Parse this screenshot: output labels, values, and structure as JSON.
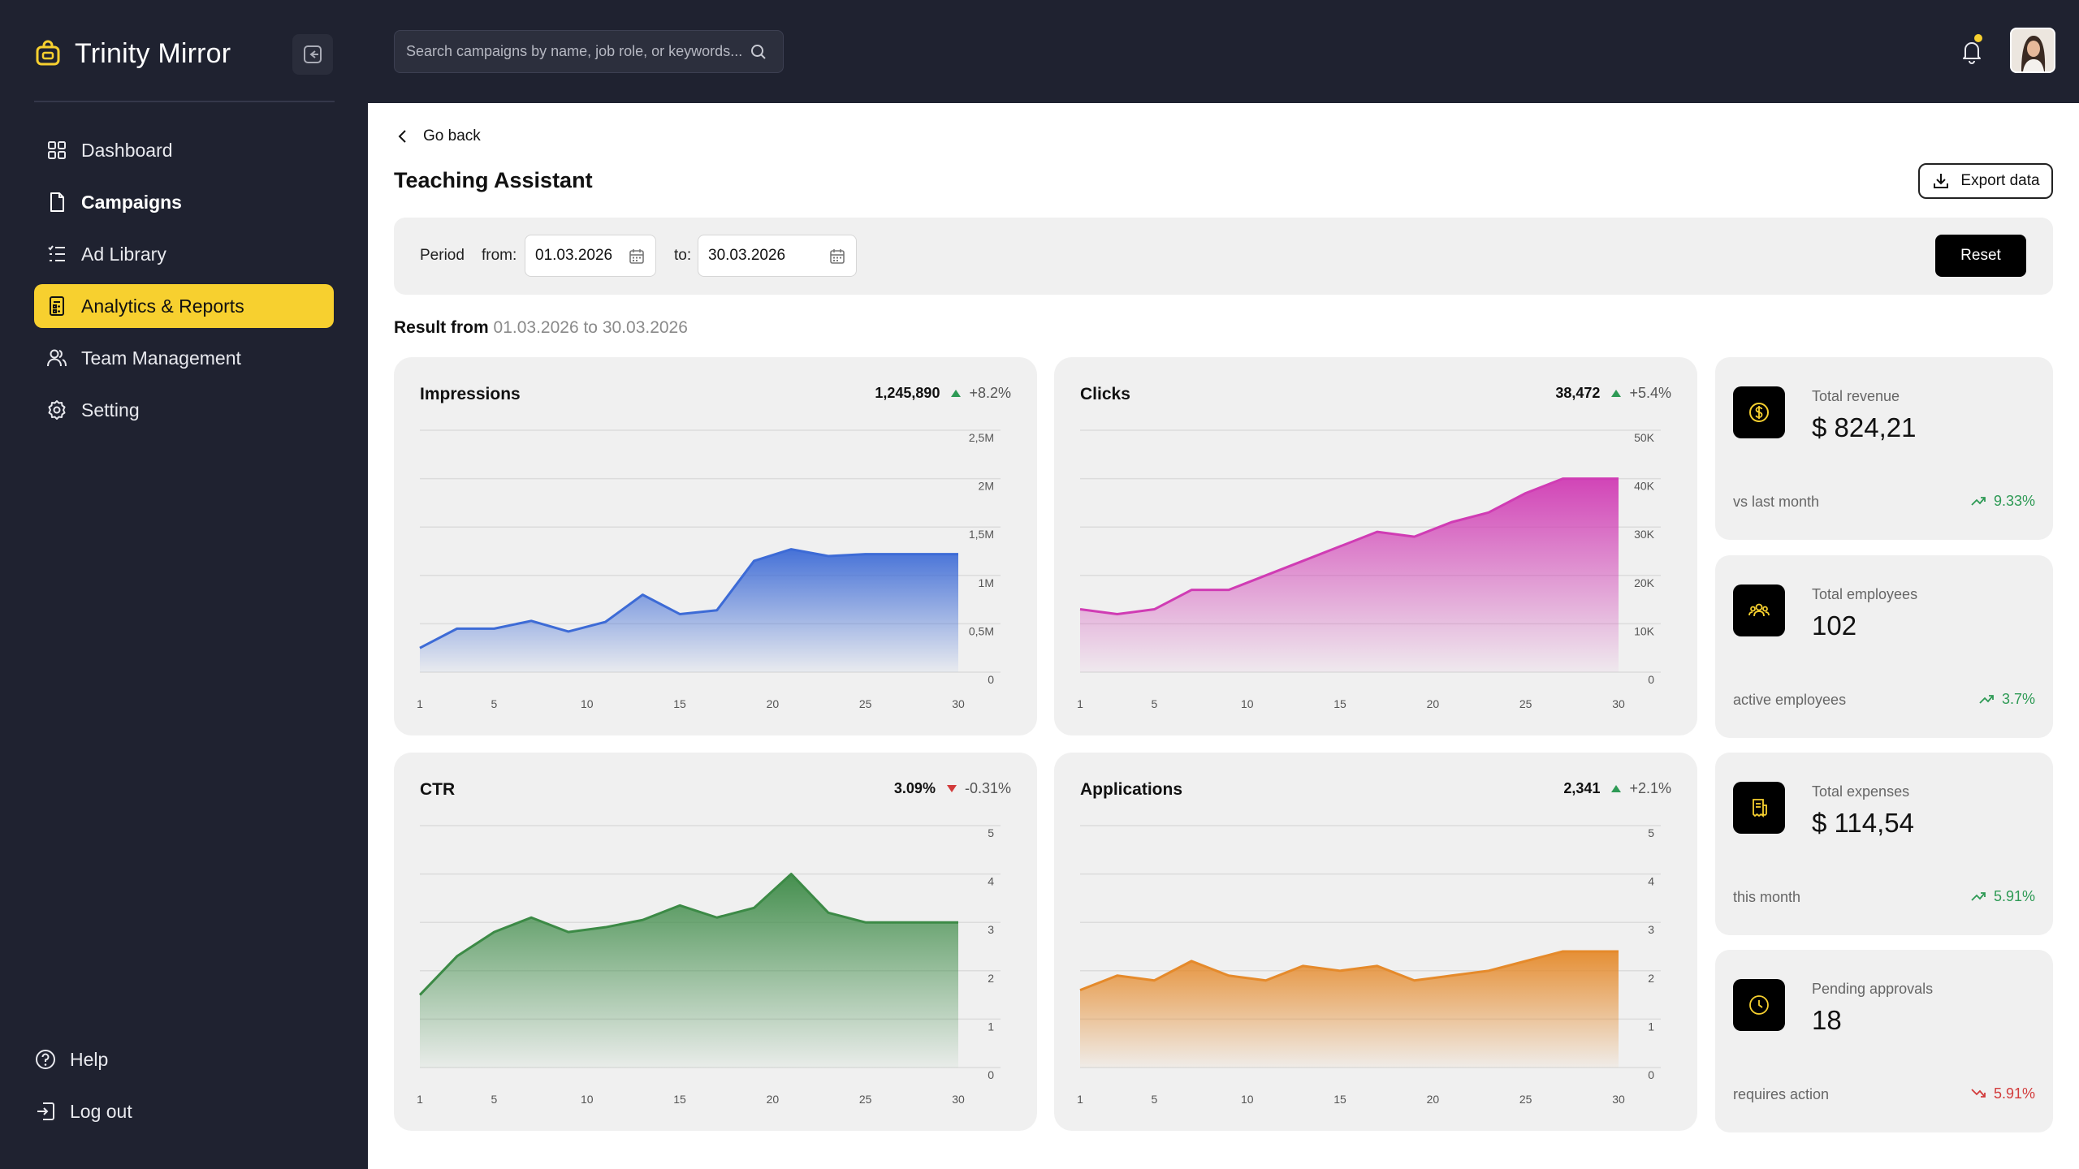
{
  "brand": {
    "name": "Trinity Mirror"
  },
  "sidebar": {
    "items": [
      {
        "label": "Dashboard",
        "icon": "grid-icon"
      },
      {
        "label": "Campaigns",
        "icon": "document-icon"
      },
      {
        "label": "Ad Library",
        "icon": "list-icon"
      },
      {
        "label": "Analytics & Reports",
        "icon": "report-icon",
        "active": true
      },
      {
        "label": "Team Management",
        "icon": "users-icon"
      },
      {
        "label": "Setting",
        "icon": "gear-icon"
      }
    ],
    "bottom": [
      {
        "label": "Help",
        "icon": "help-icon"
      },
      {
        "label": "Log out",
        "icon": "logout-icon"
      }
    ]
  },
  "search": {
    "placeholder": "Search campaigns by name, job role, or keywords..."
  },
  "page": {
    "back_label": "Go back",
    "title": "Teaching Assistant",
    "export_label": "Export data"
  },
  "filter": {
    "period_label": "Period",
    "from_label": "from:",
    "from_value": "01.03.2026",
    "to_label": "to:",
    "to_value": "30.03.2026",
    "reset_label": "Reset"
  },
  "result": {
    "prefix": "Result from",
    "range": "01.03.2026 to 30.03.2026"
  },
  "colors": {
    "accent": "#f7d02f",
    "impressions": "#3d6bd6",
    "clicks": "#d03cb4",
    "ctr": "#3c8a46",
    "applications": "#e58a2b",
    "up": "#2e9a55",
    "down": "#d23b3b"
  },
  "chart_data": [
    {
      "type": "area",
      "title": "Impressions",
      "total": "1,245,890",
      "change": "+8.2%",
      "direction": "up",
      "x": [
        1,
        3,
        5,
        7,
        9,
        11,
        13,
        15,
        17,
        19,
        21,
        23,
        25,
        27,
        29,
        30
      ],
      "values": [
        0.25,
        0.45,
        0.45,
        0.53,
        0.42,
        0.52,
        0.8,
        0.6,
        0.64,
        1.15,
        1.27,
        1.2,
        1.22,
        1.22,
        1.22,
        1.22
      ],
      "series": [
        {
          "name": "Impressions",
          "values": [
            0.25,
            0.45,
            0.45,
            0.53,
            0.42,
            0.52,
            0.8,
            0.6,
            0.64,
            1.15,
            1.27,
            1.2,
            1.22,
            1.22,
            1.22,
            1.22
          ]
        }
      ],
      "xticks": [
        "1",
        "5",
        "10",
        "15",
        "20",
        "25",
        "30"
      ],
      "yticks": [
        "0",
        "0,5M",
        "1M",
        "1,5M",
        "2M",
        "2,5M"
      ],
      "ylim": [
        0,
        2.5
      ]
    },
    {
      "type": "area",
      "title": "Clicks",
      "total": "38,472",
      "change": "+5.4%",
      "direction": "up",
      "x": [
        1,
        3,
        5,
        7,
        9,
        11,
        13,
        15,
        17,
        19,
        21,
        23,
        25,
        27,
        29,
        30
      ],
      "values": [
        13,
        12,
        13,
        17,
        17,
        20,
        23,
        26,
        29,
        28,
        31,
        33,
        37,
        40,
        40,
        40
      ],
      "series": [
        {
          "name": "Clicks",
          "values": [
            13,
            12,
            13,
            17,
            17,
            20,
            23,
            26,
            29,
            28,
            31,
            33,
            37,
            40,
            40,
            40
          ]
        }
      ],
      "xticks": [
        "1",
        "5",
        "10",
        "15",
        "20",
        "25",
        "30"
      ],
      "yticks": [
        "0",
        "10K",
        "20K",
        "30K",
        "40K",
        "50K"
      ],
      "ylim": [
        0,
        50
      ]
    },
    {
      "type": "area",
      "title": "CTR",
      "total": "3.09%",
      "change": "-0.31%",
      "direction": "down",
      "x": [
        1,
        3,
        5,
        7,
        9,
        11,
        13,
        15,
        17,
        19,
        21,
        23,
        25,
        27,
        29,
        30
      ],
      "values": [
        1.5,
        2.3,
        2.8,
        3.1,
        2.8,
        2.9,
        3.05,
        3.35,
        3.1,
        3.3,
        4.0,
        3.2,
        3.0,
        3.0,
        3.0,
        3.0
      ],
      "series": [
        {
          "name": "CTR",
          "values": [
            1.5,
            2.3,
            2.8,
            3.1,
            2.8,
            2.9,
            3.05,
            3.35,
            3.1,
            3.3,
            4.0,
            3.2,
            3.0,
            3.0,
            3.0,
            3.0
          ]
        }
      ],
      "xticks": [
        "1",
        "5",
        "10",
        "15",
        "20",
        "25",
        "30"
      ],
      "yticks": [
        "0",
        "1",
        "2",
        "3",
        "4",
        "5"
      ],
      "ylim": [
        0,
        5
      ]
    },
    {
      "type": "area",
      "title": "Applications",
      "total": "2,341",
      "change": "+2.1%",
      "direction": "up",
      "x": [
        1,
        3,
        5,
        7,
        9,
        11,
        13,
        15,
        17,
        19,
        21,
        23,
        25,
        27,
        29,
        30
      ],
      "values": [
        1.6,
        1.9,
        1.8,
        2.2,
        1.9,
        1.8,
        2.1,
        2.0,
        2.1,
        1.8,
        1.9,
        2.0,
        2.2,
        2.4,
        2.4,
        2.4
      ],
      "series": [
        {
          "name": "Applications",
          "values": [
            1.6,
            1.9,
            1.8,
            2.2,
            1.9,
            1.8,
            2.1,
            2.0,
            2.1,
            1.8,
            1.9,
            2.0,
            2.2,
            2.4,
            2.4,
            2.4
          ]
        }
      ],
      "xticks": [
        "1",
        "5",
        "10",
        "15",
        "20",
        "25",
        "30"
      ],
      "yticks": [
        "0",
        "1",
        "2",
        "3",
        "4",
        "5"
      ],
      "ylim": [
        0,
        5
      ]
    }
  ],
  "kpis": [
    {
      "label": "Total revenue",
      "value": "$ 824,21",
      "note": "vs last month",
      "trend": "9.33%",
      "direction": "up",
      "icon": "dollar-icon"
    },
    {
      "label": "Total employees",
      "value": "102",
      "note": "active employees",
      "trend": "3.7%",
      "direction": "up",
      "icon": "group-icon"
    },
    {
      "label": "Total expenses",
      "value": "$ 114,54",
      "note": "this month",
      "trend": "5.91%",
      "direction": "up",
      "icon": "receipt-icon"
    },
    {
      "label": "Pending approvals",
      "value": "18",
      "note": "requires action",
      "trend": "5.91%",
      "direction": "down",
      "icon": "clock-icon"
    }
  ]
}
